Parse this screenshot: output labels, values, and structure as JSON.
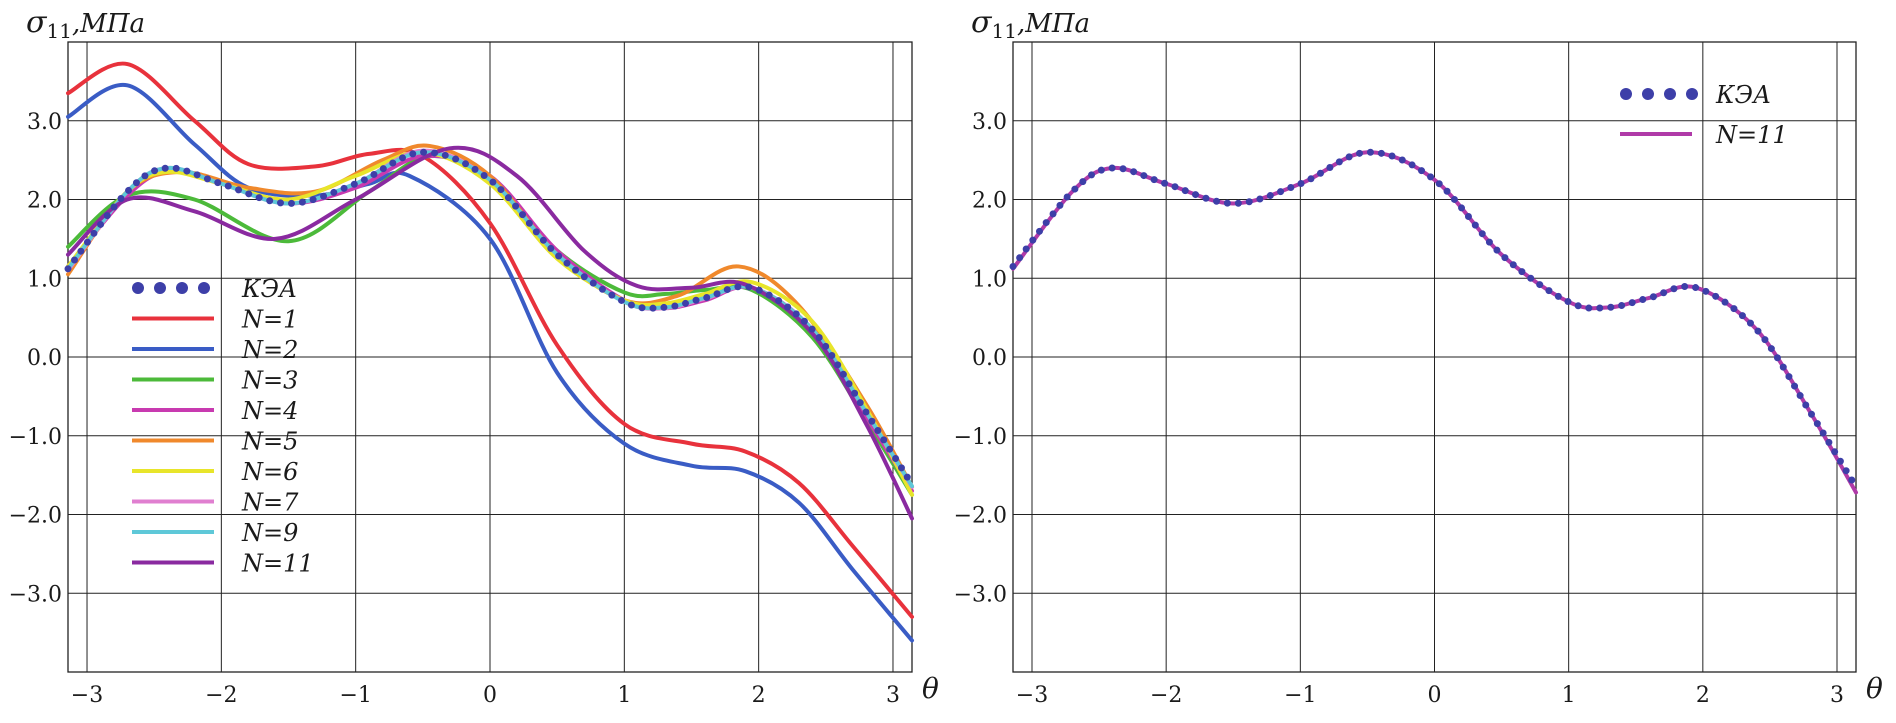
{
  "chart_data": [
    {
      "type": "line",
      "ylabel": "σ11,МПа",
      "ylabel_symbol": "σ",
      "ylabel_sub": "11",
      "ylabel_unit": ",МПа",
      "xlabel": "θ",
      "xlim": [
        -3.14159,
        3.14159
      ],
      "ylim": [
        -4.0,
        4.0
      ],
      "xticks": [
        -3,
        -2,
        -1,
        0,
        1,
        2,
        3
      ],
      "xtick_labels": [
        "−3",
        "−2",
        "−1",
        "0",
        "1",
        "2",
        "3"
      ],
      "yticks": [
        3,
        2,
        1,
        0,
        -1,
        -2,
        -3
      ],
      "ytick_labels": [
        "3.0",
        "2.0",
        "1.0",
        "0.0",
        "−1.0",
        "−2.0",
        "−3.0"
      ],
      "grid": true,
      "legend_position": "left",
      "series": [
        {
          "name": "КЭА",
          "style": "dots",
          "color": "#3d3fa8",
          "x": [
            -3.1416,
            -2.7,
            -2.4,
            -2.0,
            -1.5,
            -1.0,
            -0.5,
            0.0,
            0.5,
            1.0,
            1.3,
            1.6,
            1.95,
            2.4,
            2.8,
            3.1416
          ],
          "y": [
            1.12,
            2.1,
            2.4,
            2.2,
            1.95,
            2.2,
            2.6,
            2.25,
            1.3,
            0.7,
            0.63,
            0.75,
            0.88,
            0.35,
            -0.7,
            -1.62
          ]
        },
        {
          "name": "N=1",
          "style": "line",
          "color": "#e8323c",
          "x": [
            -3.1416,
            -2.7,
            -2.2,
            -1.8,
            -1.3,
            -0.9,
            -0.5,
            0.0,
            0.5,
            1.0,
            1.5,
            1.9,
            2.3,
            2.7,
            3.1416
          ],
          "y": [
            3.35,
            3.72,
            3.0,
            2.45,
            2.42,
            2.58,
            2.55,
            1.7,
            0.15,
            -0.85,
            -1.1,
            -1.2,
            -1.6,
            -2.4,
            -3.3
          ]
        },
        {
          "name": "N=2",
          "style": "line",
          "color": "#3a5cc5",
          "x": [
            -3.1416,
            -2.7,
            -2.2,
            -1.8,
            -1.3,
            -0.9,
            -0.6,
            0.0,
            0.5,
            1.0,
            1.5,
            1.9,
            2.3,
            2.7,
            3.1416
          ],
          "y": [
            3.05,
            3.45,
            2.7,
            2.15,
            2.05,
            2.2,
            2.3,
            1.5,
            -0.2,
            -1.1,
            -1.38,
            -1.45,
            -1.85,
            -2.7,
            -3.6
          ]
        },
        {
          "name": "N=3",
          "style": "line",
          "color": "#4cba3a",
          "x": [
            -3.1416,
            -2.7,
            -2.2,
            -1.5,
            -0.9,
            -0.45,
            0.0,
            0.5,
            1.0,
            1.3,
            1.6,
            1.95,
            2.4,
            2.8,
            3.1416
          ],
          "y": [
            1.4,
            2.05,
            2.0,
            1.47,
            2.1,
            2.55,
            2.25,
            1.35,
            0.82,
            0.8,
            0.85,
            0.85,
            0.25,
            -0.8,
            -1.75
          ]
        },
        {
          "name": "N=4",
          "style": "line",
          "color": "#c83ab0",
          "x": [
            -3.1416,
            -2.7,
            -2.4,
            -2.0,
            -1.5,
            -1.0,
            -0.5,
            0.0,
            0.5,
            1.0,
            1.3,
            1.6,
            1.95,
            2.4,
            2.8,
            3.1416
          ],
          "y": [
            1.15,
            2.05,
            2.35,
            2.2,
            1.95,
            2.15,
            2.55,
            2.3,
            1.35,
            0.72,
            0.62,
            0.72,
            0.88,
            0.35,
            -0.75,
            -1.7
          ]
        },
        {
          "name": "N=5",
          "style": "line",
          "color": "#f0892c",
          "x": [
            -3.1416,
            -2.7,
            -2.3,
            -1.8,
            -1.3,
            -0.8,
            -0.45,
            0.0,
            0.5,
            1.0,
            1.4,
            1.85,
            2.3,
            2.8,
            3.1416
          ],
          "y": [
            1.05,
            2.1,
            2.35,
            2.15,
            2.1,
            2.5,
            2.68,
            2.3,
            1.3,
            0.72,
            0.78,
            1.15,
            0.65,
            -0.6,
            -1.65
          ]
        },
        {
          "name": "N=6",
          "style": "line",
          "color": "#e8e52a",
          "x": [
            -3.1416,
            -2.7,
            -2.4,
            -2.0,
            -1.5,
            -1.0,
            -0.5,
            0.0,
            0.5,
            1.0,
            1.3,
            1.6,
            1.95,
            2.4,
            2.8,
            3.1416
          ],
          "y": [
            1.15,
            2.1,
            2.35,
            2.2,
            2.0,
            2.3,
            2.6,
            2.2,
            1.25,
            0.72,
            0.68,
            0.8,
            0.95,
            0.45,
            -0.65,
            -1.75
          ]
        },
        {
          "name": "N=7",
          "style": "line",
          "color": "#e07fd0",
          "x": [
            -3.1416,
            -2.7,
            -2.4,
            -2.0,
            -1.5,
            -1.0,
            -0.5,
            0.0,
            0.5,
            1.0,
            1.3,
            1.6,
            1.95,
            2.4,
            2.8,
            3.1416
          ],
          "y": [
            1.1,
            2.1,
            2.4,
            2.2,
            1.95,
            2.2,
            2.62,
            2.25,
            1.3,
            0.7,
            0.62,
            0.74,
            0.88,
            0.35,
            -0.7,
            -1.65
          ]
        },
        {
          "name": "N=9",
          "style": "line",
          "color": "#5ec8d8",
          "x": [
            -3.1416,
            -2.7,
            -2.4,
            -2.0,
            -1.5,
            -1.0,
            -0.5,
            0.0,
            0.5,
            1.0,
            1.3,
            1.6,
            1.95,
            2.4,
            2.8,
            3.1416
          ],
          "y": [
            1.12,
            2.1,
            2.4,
            2.2,
            1.95,
            2.2,
            2.6,
            2.25,
            1.3,
            0.7,
            0.63,
            0.75,
            0.88,
            0.35,
            -0.7,
            -1.64
          ]
        },
        {
          "name": "N=11",
          "style": "line",
          "color": "#8a2aa0",
          "x": [
            -3.1416,
            -2.7,
            -2.2,
            -1.6,
            -1.0,
            -0.3,
            0.2,
            0.7,
            1.1,
            1.5,
            1.9,
            2.4,
            2.8,
            3.1416
          ],
          "y": [
            1.3,
            2.0,
            1.85,
            1.5,
            2.0,
            2.65,
            2.3,
            1.35,
            0.9,
            0.88,
            0.92,
            0.3,
            -0.85,
            -2.05
          ]
        }
      ]
    },
    {
      "type": "line",
      "ylabel": "σ11,МПа",
      "ylabel_symbol": "σ",
      "ylabel_sub": "11",
      "ylabel_unit": ",МПа",
      "xlabel": "θ",
      "xlim": [
        -3.14159,
        3.14159
      ],
      "ylim": [
        -4.0,
        4.0
      ],
      "xticks": [
        -3,
        -2,
        -1,
        0,
        1,
        2,
        3
      ],
      "xtick_labels": [
        "−3",
        "−2",
        "−1",
        "0",
        "1",
        "2",
        "3"
      ],
      "yticks": [
        3,
        2,
        1,
        0,
        -1,
        -2,
        -3
      ],
      "ytick_labels": [
        "3.0",
        "2.0",
        "1.0",
        "0.0",
        "−1.0",
        "−2.0",
        "−3.0"
      ],
      "grid": true,
      "legend_position": "top-right",
      "series": [
        {
          "name": "КЭА",
          "style": "dots",
          "color": "#3d3fa8",
          "x": [
            -3.1416,
            -2.7,
            -2.4,
            -2.0,
            -1.5,
            -1.0,
            -0.5,
            0.0,
            0.5,
            1.0,
            1.3,
            1.6,
            1.95,
            2.4,
            2.8,
            3.1416
          ],
          "y": [
            1.15,
            2.1,
            2.4,
            2.2,
            1.95,
            2.2,
            2.6,
            2.25,
            1.3,
            0.7,
            0.63,
            0.75,
            0.88,
            0.35,
            -0.7,
            -1.65
          ]
        },
        {
          "name": "N=11",
          "style": "line",
          "color": "#b03aa8",
          "x": [
            -3.1416,
            -2.7,
            -2.4,
            -2.0,
            -1.5,
            -1.0,
            -0.5,
            0.0,
            0.5,
            1.0,
            1.3,
            1.6,
            1.95,
            2.4,
            2.8,
            3.1416
          ],
          "y": [
            1.12,
            2.1,
            2.4,
            2.2,
            1.95,
            2.2,
            2.6,
            2.25,
            1.3,
            0.7,
            0.63,
            0.75,
            0.88,
            0.35,
            -0.7,
            -1.72
          ]
        }
      ]
    }
  ]
}
